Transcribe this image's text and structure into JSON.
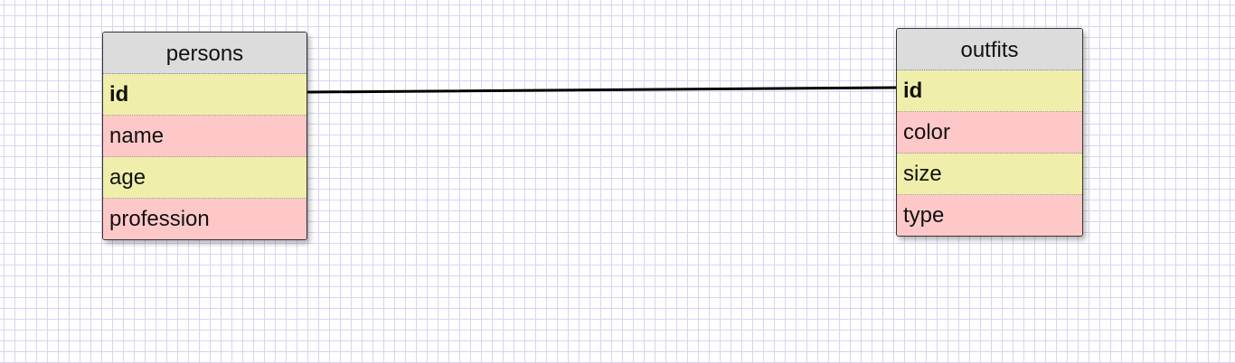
{
  "diagram": {
    "tables": [
      {
        "id": "persons",
        "title": "persons",
        "fields": [
          {
            "label": "id",
            "key": true
          },
          {
            "label": "name",
            "key": false
          },
          {
            "label": "age",
            "key": false
          },
          {
            "label": "profession",
            "key": false
          }
        ]
      },
      {
        "id": "outfits",
        "title": "outfits",
        "fields": [
          {
            "label": "id",
            "key": true
          },
          {
            "label": "color",
            "key": false
          },
          {
            "label": "size",
            "key": false
          },
          {
            "label": "type",
            "key": false
          }
        ]
      }
    ],
    "relations": [
      {
        "from": "persons.id",
        "to": "outfits.id"
      }
    ]
  },
  "colors": {
    "grid": "#d9d4f2",
    "header": "#dcdcdc",
    "row_yellow": "#efefab",
    "row_pink": "#ffc8c8",
    "line": "#000000"
  }
}
